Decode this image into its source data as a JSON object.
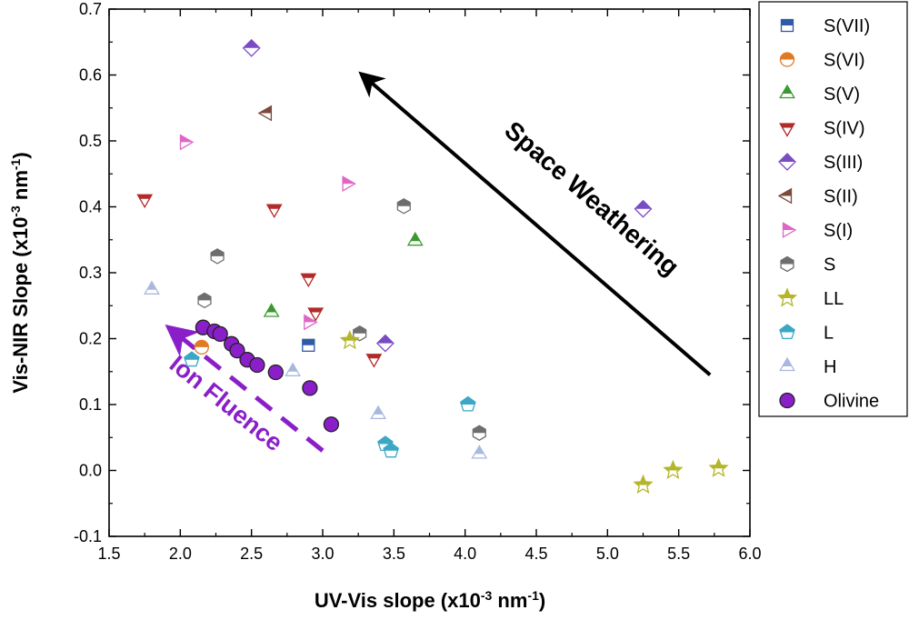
{
  "chart_data": {
    "type": "scatter",
    "title": "",
    "xlabel": "UV-Vis slope (x10-3 nm-1)",
    "ylabel": "Vis-NIR Slope (x10-3 nm-1)",
    "xlim": [
      1.5,
      6.0
    ],
    "ylim": [
      -0.1,
      0.7
    ],
    "xticks": [
      "1.5",
      "2.0",
      "2.5",
      "3.0",
      "3.5",
      "4.0",
      "4.5",
      "5.0",
      "5.5",
      "6.0"
    ],
    "yticks": [
      "-0.1",
      "0.0",
      "0.1",
      "0.2",
      "0.3",
      "0.4",
      "0.5",
      "0.6",
      "0.7"
    ],
    "grid": false,
    "legend_position": "right-outside",
    "series": [
      {
        "name": "S(VII)",
        "marker": "square-half",
        "color": "#2e5aa8",
        "points": [
          [
            2.9,
            0.19
          ]
        ]
      },
      {
        "name": "S(VI)",
        "marker": "circle-half",
        "color": "#e07b24",
        "points": [
          [
            2.15,
            0.187
          ]
        ]
      },
      {
        "name": "S(V)",
        "marker": "triangle-up-half",
        "color": "#3a9a2e",
        "points": [
          [
            2.64,
            0.24
          ],
          [
            3.65,
            0.348
          ]
        ]
      },
      {
        "name": "S(IV)",
        "marker": "triangle-down-half",
        "color": "#b22a2a",
        "points": [
          [
            1.75,
            0.412
          ],
          [
            2.66,
            0.397
          ],
          [
            2.9,
            0.292
          ],
          [
            2.95,
            0.24
          ],
          [
            3.36,
            0.17
          ]
        ]
      },
      {
        "name": "S(III)",
        "marker": "diamond-half",
        "color": "#7a4cc4",
        "points": [
          [
            2.5,
            0.641
          ],
          [
            3.44,
            0.193
          ],
          [
            5.25,
            0.397
          ]
        ]
      },
      {
        "name": "S(II)",
        "marker": "triangle-left-half",
        "color": "#7a4a3a",
        "points": [
          [
            2.61,
            0.542
          ]
        ]
      },
      {
        "name": "S(I)",
        "marker": "triangle-right-half",
        "color": "#e066c6",
        "points": [
          [
            2.03,
            0.498
          ],
          [
            3.17,
            0.435
          ],
          [
            2.9,
            0.225
          ]
        ]
      },
      {
        "name": "S",
        "marker": "hexagon-half",
        "color": "#6e6e6e",
        "points": [
          [
            2.26,
            0.325
          ],
          [
            2.17,
            0.258
          ],
          [
            3.57,
            0.401
          ],
          [
            3.26,
            0.208
          ],
          [
            4.1,
            0.057
          ]
        ]
      },
      {
        "name": "LL",
        "marker": "star-half",
        "color": "#b5b52a",
        "points": [
          [
            3.19,
            0.197
          ],
          [
            5.25,
            -0.022
          ],
          [
            5.46,
            0.0
          ],
          [
            5.78,
            0.003
          ]
        ]
      },
      {
        "name": "L",
        "marker": "pentagon-half",
        "color": "#3aa8c4",
        "points": [
          [
            2.08,
            0.168
          ],
          [
            3.44,
            0.04
          ],
          [
            3.48,
            0.03
          ],
          [
            4.02,
            0.1
          ]
        ]
      },
      {
        "name": "H",
        "marker": "triangle-up-half",
        "color": "#a9b8e0",
        "points": [
          [
            1.8,
            0.274
          ],
          [
            2.79,
            0.15
          ],
          [
            3.39,
            0.085
          ],
          [
            4.1,
            0.025
          ]
        ]
      },
      {
        "name": "Olivine",
        "marker": "circle-filled",
        "color": "#8a1fc9",
        "points": [
          [
            2.16,
            0.217
          ],
          [
            2.24,
            0.211
          ],
          [
            2.28,
            0.207
          ],
          [
            2.36,
            0.192
          ],
          [
            2.4,
            0.182
          ],
          [
            2.47,
            0.168
          ],
          [
            2.54,
            0.16
          ],
          [
            2.67,
            0.149
          ],
          [
            2.91,
            0.125
          ],
          [
            3.06,
            0.07
          ]
        ]
      }
    ],
    "annotations": [
      {
        "text": "Space Weathering",
        "color": "#000000",
        "arrow_from": [
          5.72,
          0.145
        ],
        "arrow_to": [
          3.28,
          0.6
        ]
      },
      {
        "text": "Ion Fluence",
        "color": "#8a1fc9",
        "arrow_from": [
          3.0,
          0.03
        ],
        "arrow_to": [
          1.93,
          0.215
        ],
        "dashed": true
      }
    ]
  }
}
